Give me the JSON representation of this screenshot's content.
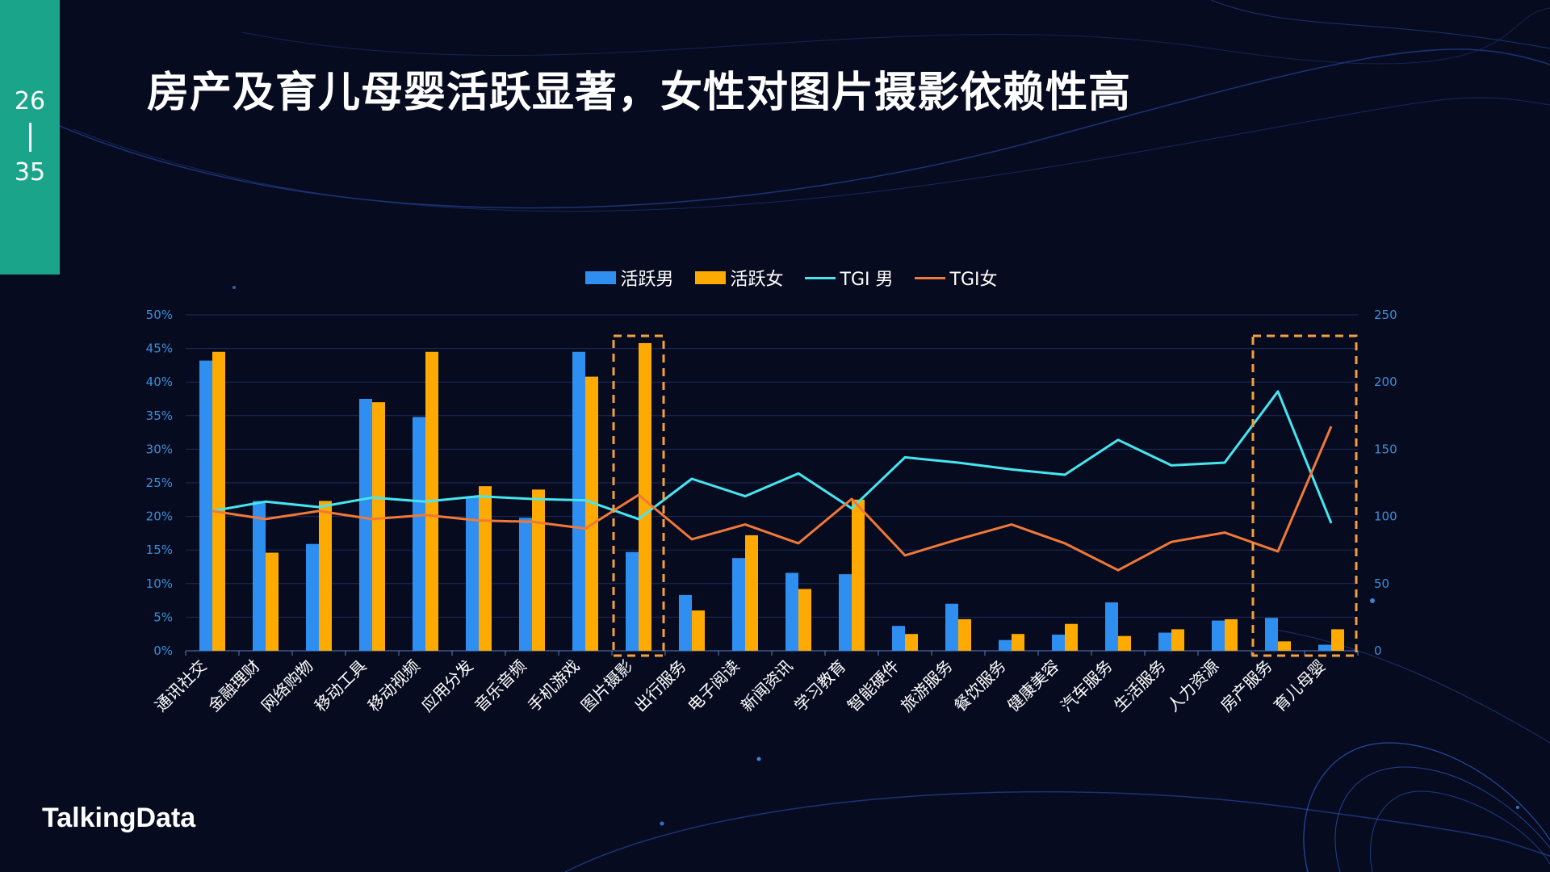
{
  "page": {
    "current": "26",
    "total": "35"
  },
  "title": "房产及育儿母婴活跃显著，女性对图片摄影依赖性高",
  "logo": "TalkingData",
  "colors": {
    "male_bar": "#2f8ff0",
    "female_bar": "#ffaa00",
    "tgi_male": "#46e6f0",
    "tgi_female": "#f07838",
    "highlight": "#f0a040",
    "axis": "#3a8fd8",
    "grid": "#1c2d5a",
    "tab": "#1aa48a"
  },
  "legend": [
    {
      "label": "活跃男",
      "kind": "bar",
      "color": "#2f8ff0"
    },
    {
      "label": "活跃女",
      "kind": "bar",
      "color": "#ffaa00"
    },
    {
      "label": "TGI 男",
      "kind": "line",
      "color": "#46e6f0"
    },
    {
      "label": "TGI女",
      "kind": "line",
      "color": "#f07838"
    }
  ],
  "chart_data": {
    "type": "bar",
    "categories": [
      "通讯社交",
      "金融理财",
      "网络购物",
      "移动工具",
      "移动视频",
      "应用分发",
      "音乐音频",
      "手机游戏",
      "图片摄影",
      "出行服务",
      "电子阅读",
      "新闻资讯",
      "学习教育",
      "智能硬件",
      "旅游服务",
      "餐饮服务",
      "健康美容",
      "汽车服务",
      "生活服务",
      "人力资源",
      "房产服务",
      "育儿母婴"
    ],
    "series": [
      {
        "name": "活跃男",
        "kind": "bar",
        "axis": "left",
        "values": [
          43.2,
          22.3,
          15.9,
          37.5,
          34.8,
          23.0,
          19.8,
          44.5,
          14.7,
          8.3,
          13.8,
          11.6,
          11.4,
          3.7,
          7.0,
          1.6,
          2.4,
          7.2,
          2.7,
          4.5,
          4.9,
          0.9
        ]
      },
      {
        "name": "活跃女",
        "kind": "bar",
        "axis": "left",
        "values": [
          44.5,
          14.6,
          22.3,
          37.0,
          44.5,
          24.5,
          24.0,
          40.8,
          45.8,
          6.0,
          17.2,
          9.2,
          22.5,
          2.5,
          4.7,
          2.5,
          4.0,
          2.2,
          3.2,
          4.7,
          1.4,
          3.2
        ]
      },
      {
        "name": "TGI 男",
        "kind": "line",
        "axis": "right",
        "values": [
          104,
          111,
          107,
          114,
          111,
          115,
          113,
          112,
          98,
          128,
          115,
          132,
          106,
          144,
          140,
          135,
          131,
          157,
          138,
          140,
          193,
          95
        ]
      },
      {
        "name": "TGI女",
        "kind": "line",
        "axis": "right",
        "values": [
          104,
          98,
          104,
          98,
          101,
          97,
          96,
          91,
          116,
          83,
          94,
          80,
          113,
          71,
          83,
          94,
          80,
          60,
          81,
          88,
          74,
          167
        ]
      }
    ],
    "y_left": {
      "min": 0,
      "max": 50,
      "ticks": [
        "0%",
        "5%",
        "10%",
        "15%",
        "20%",
        "25%",
        "30%",
        "35%",
        "40%",
        "45%",
        "50%"
      ]
    },
    "y_right": {
      "min": 0,
      "max": 250,
      "ticks": [
        "0",
        "50",
        "100",
        "150",
        "200",
        "250"
      ]
    },
    "highlights": [
      [
        "图片摄影"
      ],
      [
        "房产服务",
        "育儿母婴"
      ]
    ],
    "grid": true,
    "legend_position": "top"
  }
}
